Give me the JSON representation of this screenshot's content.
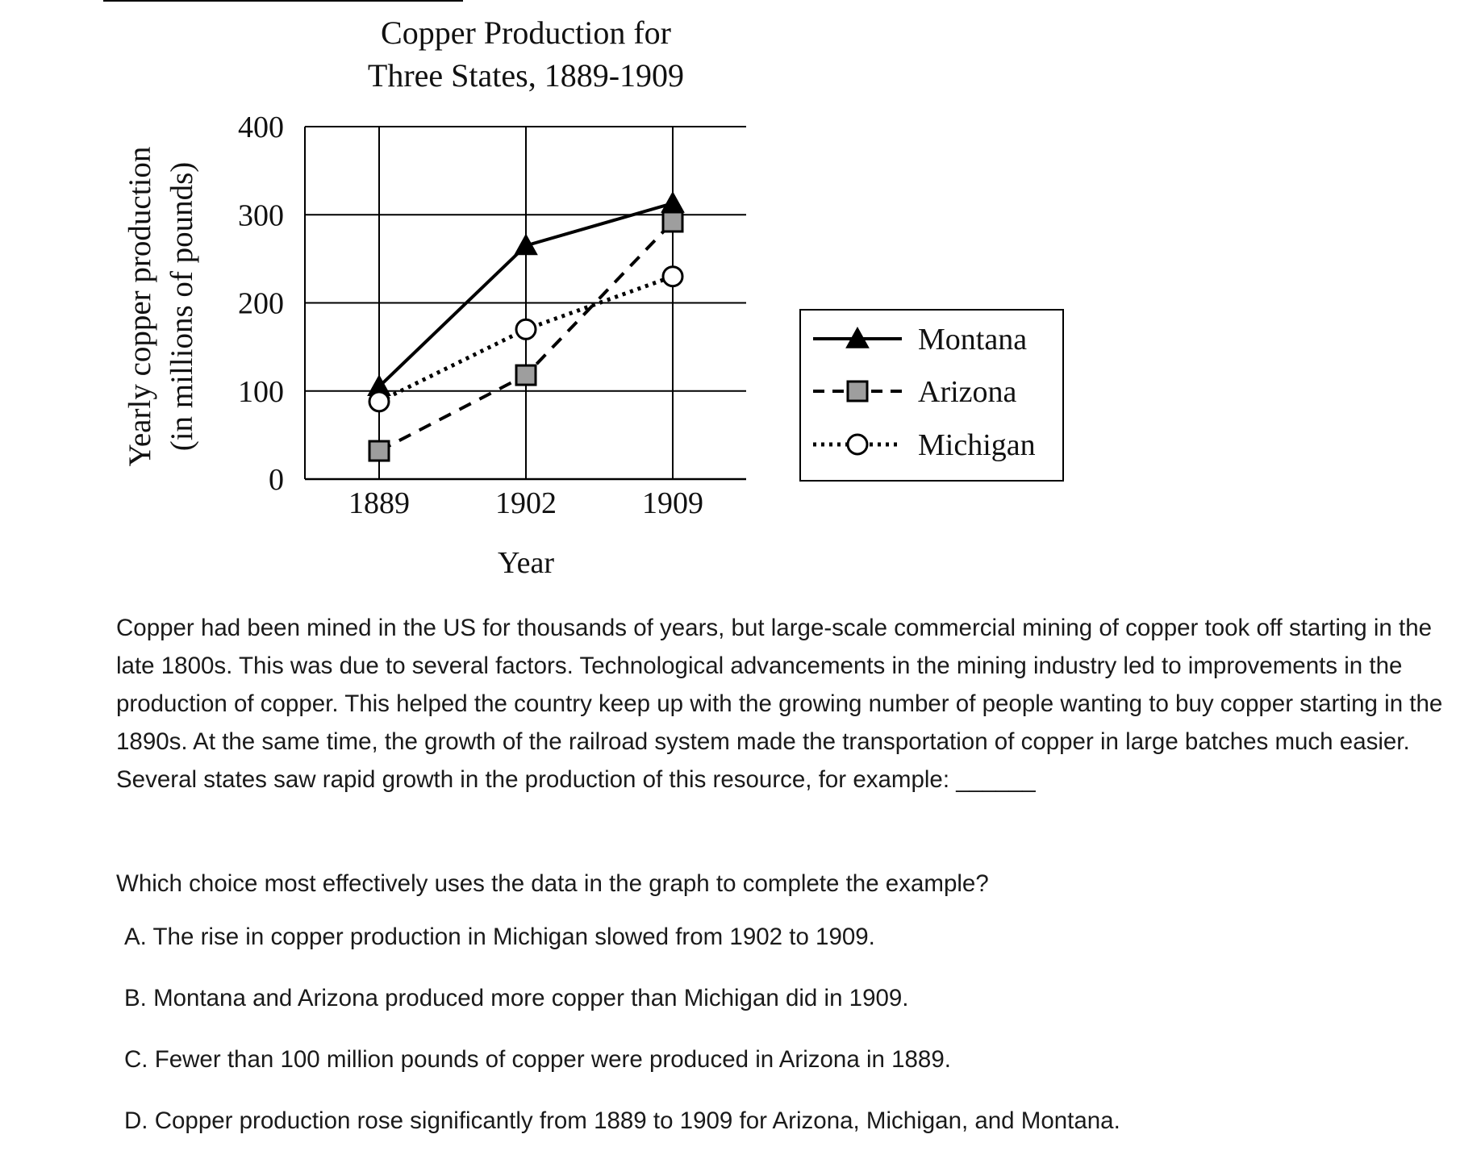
{
  "chart_data": {
    "type": "line",
    "title": [
      "Copper Production for",
      "Three States, 1889-1909"
    ],
    "xlabel": "Year",
    "ylabel": [
      "Yearly copper production",
      "(in millions of pounds)"
    ],
    "categories": [
      "1889",
      "1902",
      "1909"
    ],
    "ylim": [
      0,
      400
    ],
    "yticks": [
      "0",
      "100",
      "200",
      "300",
      "400"
    ],
    "grid": true,
    "legend_position": "right",
    "series": [
      {
        "name": "Montana",
        "values": [
          105,
          265,
          313
        ],
        "line_style": "solid",
        "marker": "filled-triangle",
        "color": "#000000"
      },
      {
        "name": "Arizona",
        "values": [
          32,
          118,
          292
        ],
        "line_style": "dashed",
        "marker": "gray-square",
        "color": "#9e9e9e"
      },
      {
        "name": "Michigan",
        "values": [
          88,
          170,
          230
        ],
        "line_style": "dotted",
        "marker": "open-circle",
        "color": "#ffffff"
      }
    ]
  },
  "passage": {
    "text": "Copper had been mined in the US for thousands of years, but large-scale commercial mining of copper took off starting in the late 1800s. This was due to several factors. Technological advancements in the mining industry led to improvements in the production of copper. This helped the country keep up with the growing number of people wanting to buy copper starting in the 1890s. At the same time, the growth of the railroad system made the transportation of copper in large batches much easier. Several states saw rapid growth in the production of this resource, for example: ______"
  },
  "question": {
    "prompt": "Which choice most effectively uses the data in the graph to complete the example?",
    "choices": [
      "A. The rise in copper production in Michigan slowed from 1902 to 1909.",
      "B. Montana and Arizona produced more copper than Michigan did in 1909.",
      "C. Fewer than 100 million pounds of copper were produced in Arizona in 1889.",
      "D. Copper production rose significantly from 1889 to 1909 for Arizona, Michigan, and Montana."
    ]
  }
}
